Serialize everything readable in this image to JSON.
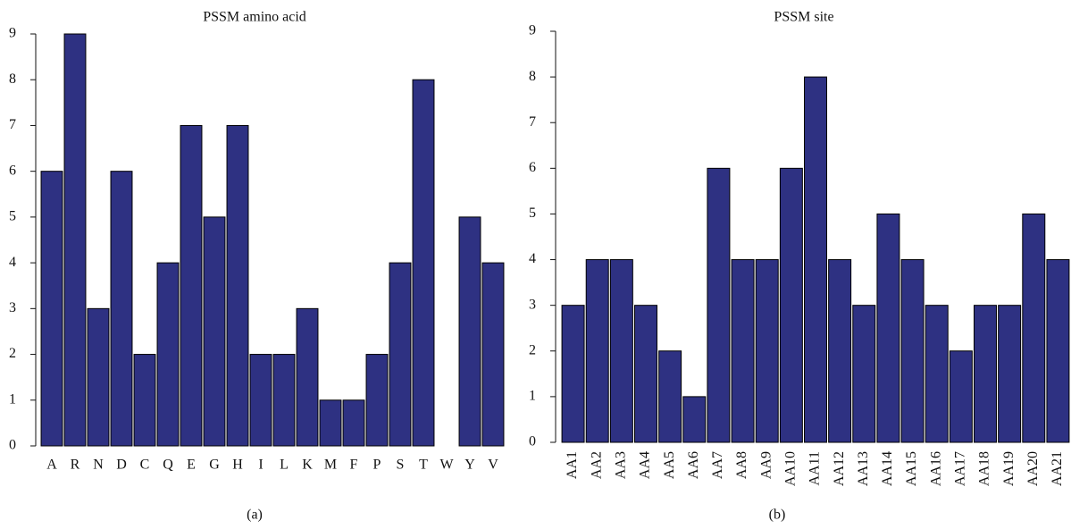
{
  "chart_data": [
    {
      "type": "bar",
      "title": "PSSM amino acid",
      "caption": "(a)",
      "categories": [
        "A",
        "R",
        "N",
        "D",
        "C",
        "Q",
        "E",
        "G",
        "H",
        "I",
        "L",
        "K",
        "M",
        "F",
        "P",
        "S",
        "T",
        "W",
        "Y",
        "V"
      ],
      "values": [
        6,
        9,
        3,
        6,
        2,
        4,
        7,
        5,
        7,
        2,
        2,
        3,
        1,
        1,
        2,
        4,
        8,
        0,
        5,
        4
      ],
      "color": "#2e3182",
      "ylim": [
        0,
        9
      ],
      "yticks": [
        0,
        1,
        2,
        3,
        4,
        5,
        6,
        7,
        8,
        9
      ],
      "x_label_rotation": 0
    },
    {
      "type": "bar",
      "title": "PSSM site",
      "caption": "(b)",
      "categories": [
        "AA1",
        "AA2",
        "AA3",
        "AA4",
        "AA5",
        "AA6",
        "AA7",
        "AA8",
        "AA9",
        "AA10",
        "AA11",
        "AA12",
        "AA13",
        "AA14",
        "AA15",
        "AA16",
        "AA17",
        "AA18",
        "AA19",
        "AA20",
        "AA21"
      ],
      "values": [
        3,
        4,
        4,
        3,
        2,
        1,
        6,
        4,
        4,
        6,
        8,
        4,
        3,
        5,
        4,
        3,
        2,
        3,
        3,
        5,
        4
      ],
      "color": "#2e3182",
      "ylim": [
        0,
        9
      ],
      "yticks": [
        0,
        1,
        2,
        3,
        4,
        5,
        6,
        7,
        8,
        9
      ],
      "x_label_rotation": -90
    }
  ]
}
